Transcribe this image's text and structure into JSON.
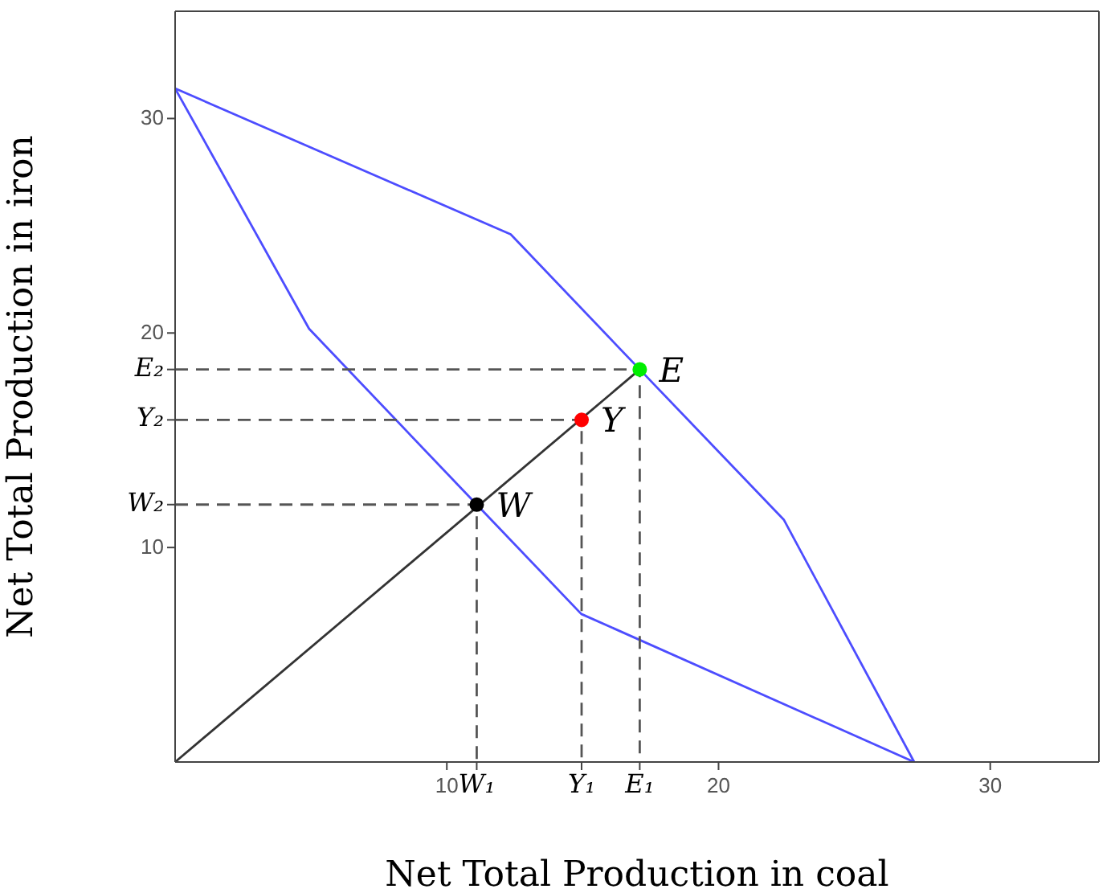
{
  "chart_data": {
    "type": "line",
    "xlabel": "Net Total Production in coal",
    "ylabel": "Net Total Production in iron",
    "xlim": [
      0,
      34
    ],
    "ylim": [
      0,
      35
    ],
    "xticks": [
      10,
      {
        "value": 11.1,
        "label": "W₁"
      },
      {
        "value": 14.96,
        "label": "Y₁"
      },
      {
        "value": 17.1,
        "label": "E₁"
      },
      20,
      30
    ],
    "yticks": [
      10,
      {
        "value": 12.0,
        "label": "W₂"
      },
      {
        "value": 15.95,
        "label": "Y₂"
      },
      {
        "value": 18.3,
        "label": "E₂"
      },
      20,
      30
    ],
    "grid": false,
    "series": [
      {
        "type": "line",
        "color": "#4d4dff",
        "x": [
          0,
          12.35,
          17.1,
          22.4,
          27.2
        ],
        "values": [
          31.4,
          24.6,
          18.3,
          11.3,
          0
        ]
      },
      {
        "type": "line",
        "color": "#4d4dff",
        "x": [
          0,
          4.93,
          11.1,
          14.95,
          27.2
        ],
        "values": [
          31.4,
          20.2,
          12.0,
          6.9,
          0
        ]
      },
      {
        "type": "line",
        "color": "#333333",
        "x": [
          0,
          17.1
        ],
        "values": [
          0,
          18.3
        ]
      },
      {
        "type": "line",
        "color": "#555555",
        "line_style": "dashed",
        "x": [
          0,
          11.1,
          11.1
        ],
        "values": [
          12.0,
          12.0,
          0
        ]
      },
      {
        "type": "line",
        "color": "#555555",
        "line_style": "dashed",
        "x": [
          0,
          14.96,
          14.96
        ],
        "values": [
          15.95,
          15.95,
          0
        ]
      },
      {
        "type": "line",
        "color": "#555555",
        "line_style": "dashed",
        "x": [
          0,
          17.1,
          17.1
        ],
        "values": [
          18.3,
          18.3,
          0
        ]
      },
      {
        "type": "scatter",
        "marker": "circle",
        "x": [
          11.1,
          14.96,
          17.1
        ],
        "values": [
          12.0,
          15.95,
          18.3
        ],
        "colors": [
          "#000000",
          "#ff0000",
          "#00ee00"
        ]
      }
    ],
    "annotations": [
      {
        "text": "W",
        "x": 11.1,
        "y": 12.0
      },
      {
        "text": "Y",
        "x": 14.96,
        "y": 15.95
      },
      {
        "text": "E",
        "x": 17.1,
        "y": 18.3
      }
    ]
  }
}
